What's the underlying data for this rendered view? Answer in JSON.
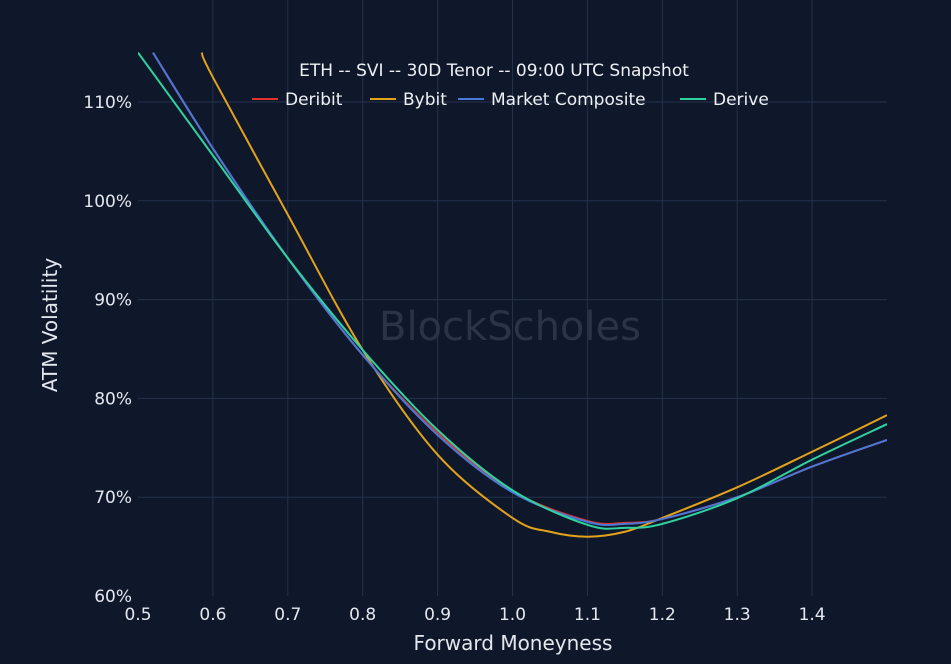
{
  "chart_data": {
    "type": "line",
    "title": "ETH -- SVI -- 30D Tenor -- 09:00 UTC Snapshot",
    "xlabel": "Forward Moneyness",
    "ylabel": "ATM Volatility",
    "xlim": [
      0.5,
      1.5
    ],
    "ylim": [
      60,
      115
    ],
    "grid": true,
    "legend_position": "top-center",
    "watermark": "BlockScholes",
    "x_ticks": [
      "0.5",
      "0.6",
      "0.7",
      "0.8",
      "0.9",
      "1.0",
      "1.1",
      "1.2",
      "1.3",
      "1.4"
    ],
    "y_ticks": [
      "60%",
      "70%",
      "80%",
      "90%",
      "100%",
      "110%"
    ],
    "x_tick_values": [
      0.5,
      0.6,
      0.7,
      0.8,
      0.9,
      1.0,
      1.1,
      1.2,
      1.3,
      1.4
    ],
    "y_tick_values": [
      60,
      70,
      80,
      90,
      100,
      110
    ],
    "series": [
      {
        "name": "Deribit",
        "color": "#e0312b",
        "x": [
          0.52,
          0.6,
          0.7,
          0.8,
          0.9,
          1.0,
          1.1,
          1.15,
          1.2,
          1.3,
          1.4,
          1.5
        ],
        "y": [
          115,
          105.3,
          94.2,
          84.4,
          76.5,
          70.6,
          67.6,
          67.4,
          67.8,
          70.0,
          73.1,
          75.8
        ]
      },
      {
        "name": "Bybit",
        "color": "#e2a21a",
        "x": [
          0.585,
          0.6,
          0.7,
          0.8,
          0.9,
          1.0,
          1.05,
          1.1,
          1.15,
          1.2,
          1.3,
          1.4,
          1.5
        ],
        "y": [
          115,
          112.5,
          98.6,
          84.9,
          74.3,
          67.9,
          66.5,
          66.0,
          66.5,
          67.9,
          71.0,
          74.6,
          78.3
        ]
      },
      {
        "name": "Market Composite",
        "color": "#4a78d8",
        "x": [
          0.52,
          0.6,
          0.7,
          0.8,
          0.9,
          1.0,
          1.1,
          1.15,
          1.2,
          1.3,
          1.4,
          1.5
        ],
        "y": [
          115,
          105.3,
          94.2,
          84.4,
          76.3,
          70.5,
          67.5,
          67.3,
          67.8,
          70.0,
          73.1,
          75.8
        ]
      },
      {
        "name": "Derive",
        "color": "#2fd3a0",
        "x": [
          0.5,
          0.6,
          0.7,
          0.8,
          0.9,
          1.0,
          1.1,
          1.15,
          1.2,
          1.3,
          1.4,
          1.5
        ],
        "y": [
          115,
          104.6,
          94.2,
          84.9,
          76.8,
          70.7,
          67.2,
          66.9,
          67.3,
          69.9,
          73.8,
          77.4
        ]
      }
    ]
  }
}
